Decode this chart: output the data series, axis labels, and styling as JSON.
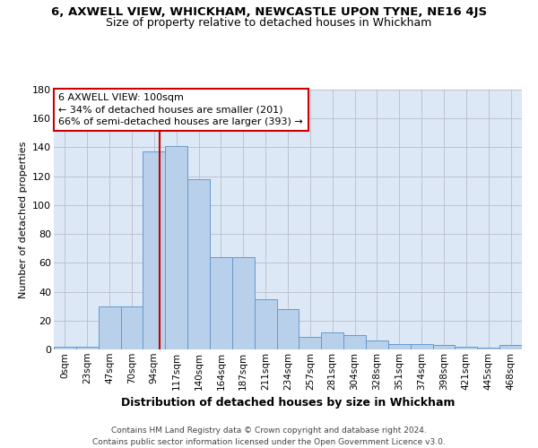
{
  "title": "6, AXWELL VIEW, WHICKHAM, NEWCASTLE UPON TYNE, NE16 4JS",
  "subtitle": "Size of property relative to detached houses in Whickham",
  "xlabel": "Distribution of detached houses by size in Whickham",
  "ylabel": "Number of detached properties",
  "categories": [
    "0sqm",
    "23sqm",
    "47sqm",
    "70sqm",
    "94sqm",
    "117sqm",
    "140sqm",
    "164sqm",
    "187sqm",
    "211sqm",
    "234sqm",
    "257sqm",
    "281sqm",
    "304sqm",
    "328sqm",
    "351sqm",
    "374sqm",
    "398sqm",
    "421sqm",
    "445sqm",
    "468sqm"
  ],
  "values": [
    2,
    2,
    30,
    30,
    137,
    141,
    118,
    64,
    64,
    35,
    28,
    9,
    12,
    10,
    6,
    4,
    4,
    3,
    2,
    1,
    3
  ],
  "bar_color": "#b8d0ea",
  "bar_edge_color": "#6699cc",
  "background_color": "#ffffff",
  "plot_bg_color": "#dce8f5",
  "grid_color": "#bbbbcc",
  "annotation_text_line1": "6 AXWELL VIEW: 100sqm",
  "annotation_text_line2": "← 34% of detached houses are smaller (201)",
  "annotation_text_line3": "66% of semi-detached houses are larger (393) →",
  "annotation_box_color": "#ffffff",
  "annotation_box_edge_color": "#cc0000",
  "vline_color": "#cc0000",
  "footer_line1": "Contains HM Land Registry data © Crown copyright and database right 2024.",
  "footer_line2": "Contains public sector information licensed under the Open Government Licence v3.0.",
  "ylim": [
    0,
    180
  ],
  "yticks": [
    0,
    20,
    40,
    60,
    80,
    100,
    120,
    140,
    160,
    180
  ]
}
